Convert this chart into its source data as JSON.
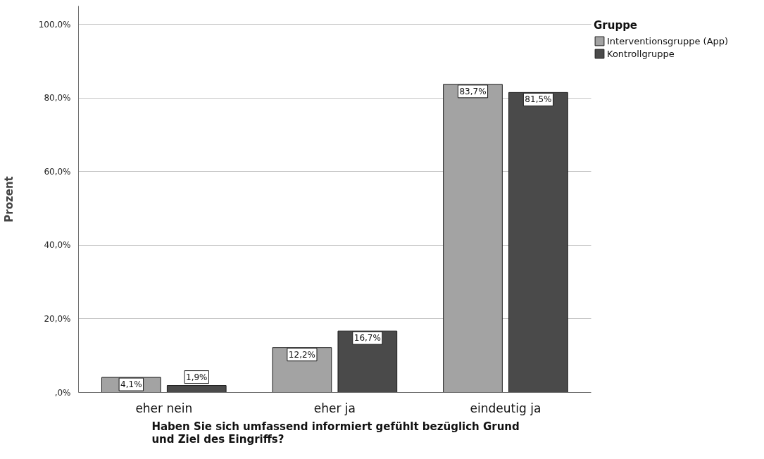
{
  "chart_data": {
    "type": "bar",
    "xlabel": "Haben Sie sich umfassend informiert gefühlt bezüglich Grund und Ziel des Eingriffs?",
    "ylabel": "Prozent",
    "legend_title": "Gruppe",
    "categories": [
      "eher nein",
      "eher ja",
      "eindeutig ja"
    ],
    "series": [
      {
        "name": "Interventionsgruppe (App)",
        "color": "#a3a3a3",
        "values": [
          4.1,
          12.2,
          83.7
        ],
        "value_labels": [
          "4,1%",
          "12,2%",
          "83,7%"
        ]
      },
      {
        "name": "Kontrollgruppe",
        "color": "#4a4a4a",
        "values": [
          1.9,
          16.7,
          81.5
        ],
        "value_labels": [
          "1,9%",
          "16,7%",
          "81,5%"
        ]
      }
    ],
    "ylim": [
      0,
      105
    ],
    "yticks": [
      {
        "value": 0,
        "label": ",0%"
      },
      {
        "value": 20,
        "label": "20,0%"
      },
      {
        "value": 40,
        "label": "40,0%"
      },
      {
        "value": 60,
        "label": "60,0%"
      },
      {
        "value": 80,
        "label": "80,0%"
      },
      {
        "value": 100,
        "label": "100,0%"
      }
    ],
    "grid": "y",
    "legend": "top right"
  }
}
